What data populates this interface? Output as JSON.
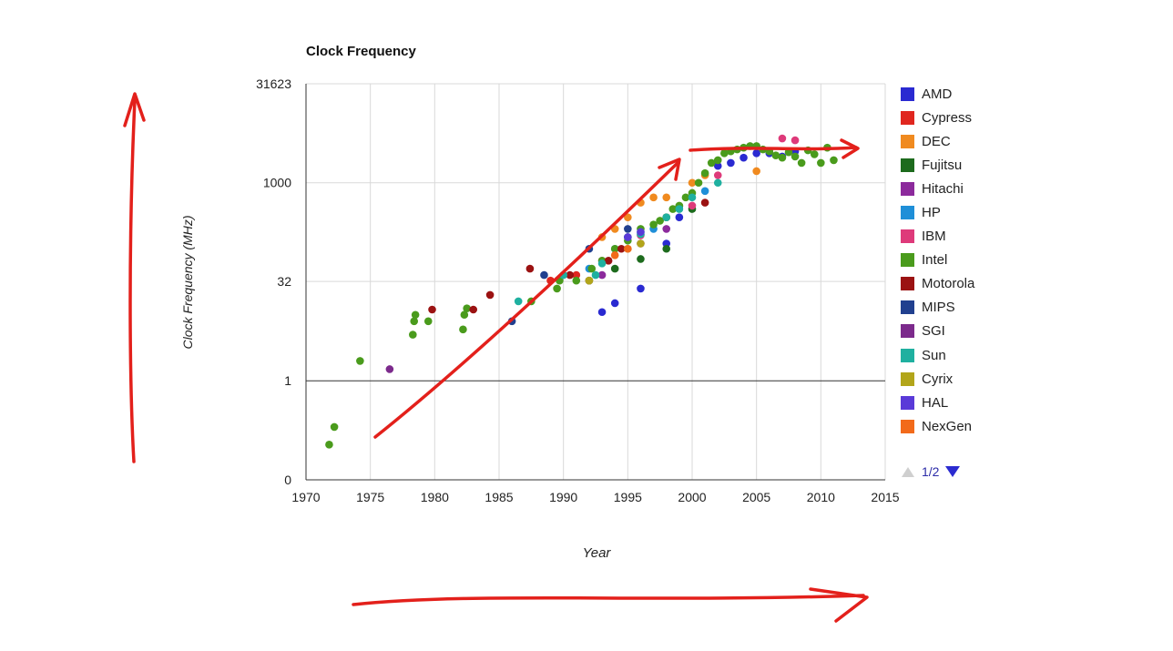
{
  "chart_data": {
    "type": "scatter",
    "title": "Clock Frequency",
    "xlabel": "Year",
    "ylabel": "Clock Frequency (MHz)",
    "y_scale": "log",
    "xlim": [
      1970,
      2015
    ],
    "ylim": [
      0.03162,
      31623
    ],
    "x_ticks": [
      1970,
      1975,
      1980,
      1985,
      1990,
      1995,
      2000,
      2005,
      2010,
      2015
    ],
    "x_tick_labels": [
      "1970",
      "1975",
      "1980",
      "1985",
      "1990",
      "1995",
      "2000",
      "2005",
      "2010",
      "2015"
    ],
    "y_ticks": [
      0.03162,
      1,
      32,
      1000,
      31623
    ],
    "y_tick_labels": [
      "0",
      "1",
      "32",
      "1000",
      "31623"
    ],
    "grid": true,
    "legend_position": "right",
    "series": [
      {
        "name": "AMD",
        "color": "#2a2ad1",
        "points": [
          [
            1993,
            11
          ],
          [
            1994,
            15
          ],
          [
            1996,
            25
          ],
          [
            1998,
            120
          ],
          [
            1999,
            300
          ],
          [
            2002,
            1800
          ],
          [
            2003,
            2000
          ],
          [
            2004,
            2400
          ],
          [
            2005,
            2800
          ],
          [
            2006,
            2800
          ],
          [
            2007,
            2500
          ],
          [
            2008,
            3000
          ]
        ]
      },
      {
        "name": "Cypress",
        "color": "#e0261f",
        "points": [
          [
            1989,
            33
          ],
          [
            1991,
            40
          ],
          [
            1992,
            33
          ]
        ]
      },
      {
        "name": "DEC",
        "color": "#f08a1f",
        "points": [
          [
            1993,
            150
          ],
          [
            1994,
            200
          ],
          [
            1995,
            300
          ],
          [
            1996,
            500
          ],
          [
            1997,
            600
          ],
          [
            1998,
            600
          ],
          [
            2000,
            1000
          ],
          [
            2001,
            1300
          ],
          [
            2005,
            1500
          ]
        ]
      },
      {
        "name": "Fujitsu",
        "color": "#1d6b1d",
        "points": [
          [
            1992,
            33
          ],
          [
            1994,
            50
          ],
          [
            1996,
            70
          ],
          [
            1998,
            100
          ],
          [
            2000,
            400
          ]
        ]
      },
      {
        "name": "Hitachi",
        "color": "#8c2a9c",
        "points": [
          [
            1993,
            40
          ],
          [
            1996,
            120
          ],
          [
            1998,
            200
          ]
        ]
      },
      {
        "name": "HP",
        "color": "#1f8fd8",
        "points": [
          [
            1992,
            50
          ],
          [
            1994,
            100
          ],
          [
            1996,
            180
          ],
          [
            1997,
            200
          ],
          [
            1999,
            440
          ],
          [
            2001,
            750
          ]
        ]
      },
      {
        "name": "IBM",
        "color": "#de3a7a",
        "points": [
          [
            1993,
            66
          ],
          [
            1996,
            160
          ],
          [
            1998,
            300
          ],
          [
            2000,
            450
          ],
          [
            2002,
            1300
          ],
          [
            2007,
            4700
          ],
          [
            2008,
            4400
          ]
        ]
      },
      {
        "name": "Intel",
        "color": "#4a9b1c",
        "points": [
          [
            1971.8,
            0.108
          ],
          [
            1972.2,
            0.2
          ],
          [
            1974.2,
            2
          ],
          [
            1978.3,
            5
          ],
          [
            1978.4,
            8
          ],
          [
            1978.5,
            10
          ],
          [
            1979.5,
            8
          ],
          [
            1982.2,
            6
          ],
          [
            1982.3,
            10
          ],
          [
            1982.5,
            12.5
          ],
          [
            1987.5,
            16
          ],
          [
            1989.5,
            25
          ],
          [
            1989.7,
            33
          ],
          [
            1991,
            33
          ],
          [
            1992.2,
            50
          ],
          [
            1993,
            66
          ],
          [
            1994,
            100
          ],
          [
            1995,
            133
          ],
          [
            1996,
            200
          ],
          [
            1997,
            233
          ],
          [
            1997.5,
            266
          ],
          [
            1998,
            300
          ],
          [
            1998.5,
            400
          ],
          [
            1999,
            450
          ],
          [
            1999.5,
            600
          ],
          [
            2000,
            700
          ],
          [
            2000.5,
            1000
          ],
          [
            2001,
            1400
          ],
          [
            2001.5,
            2000
          ],
          [
            2002,
            2200
          ],
          [
            2002.5,
            2800
          ],
          [
            2003,
            3000
          ],
          [
            2003.5,
            3200
          ],
          [
            2004,
            3400
          ],
          [
            2004.5,
            3600
          ],
          [
            2005,
            3600
          ],
          [
            2005.5,
            3200
          ],
          [
            2006,
            3000
          ],
          [
            2006.5,
            2600
          ],
          [
            2007,
            2400
          ],
          [
            2007.5,
            2900
          ],
          [
            2008,
            2500
          ],
          [
            2008.5,
            2000
          ],
          [
            2009,
            3100
          ],
          [
            2009.5,
            2700
          ],
          [
            2010,
            2000
          ],
          [
            2010.5,
            3400
          ],
          [
            2011,
            2200
          ]
        ]
      },
      {
        "name": "Motorola",
        "color": "#9b1212",
        "points": [
          [
            1979.8,
            12
          ],
          [
            1983,
            12
          ],
          [
            1984.3,
            20
          ],
          [
            1987.4,
            50
          ],
          [
            1990.5,
            40
          ],
          [
            1993.5,
            66
          ],
          [
            1994.5,
            100
          ],
          [
            2001,
            500
          ]
        ]
      },
      {
        "name": "MIPS",
        "color": "#21408f",
        "points": [
          [
            1986,
            8
          ],
          [
            1988.5,
            40
          ],
          [
            1992,
            100
          ],
          [
            1995,
            200
          ]
        ]
      },
      {
        "name": "SGI",
        "color": "#7c2a8c",
        "points": [
          [
            1976.5,
            1.5
          ],
          [
            1995,
            150
          ]
        ]
      },
      {
        "name": "Sun",
        "color": "#1fb0a0",
        "points": [
          [
            1986.5,
            16
          ],
          [
            1990,
            40
          ],
          [
            1992.5,
            40
          ],
          [
            1993,
            60
          ],
          [
            1995,
            150
          ],
          [
            1996,
            167
          ],
          [
            1998,
            300
          ],
          [
            1999,
            400
          ],
          [
            2000,
            600
          ],
          [
            2002,
            1000
          ]
        ]
      },
      {
        "name": "Cyrix",
        "color": "#b2a51a",
        "points": [
          [
            1992,
            33
          ],
          [
            1995,
            100
          ],
          [
            1996,
            120
          ]
        ]
      },
      {
        "name": "HAL",
        "color": "#5a3ad8",
        "points": [
          [
            1995,
            150
          ],
          [
            1996,
            180
          ]
        ]
      },
      {
        "name": "NexGen",
        "color": "#f26a1a",
        "points": [
          [
            1994,
            80
          ],
          [
            1995,
            100
          ]
        ]
      }
    ],
    "legend_page": "1/2"
  }
}
